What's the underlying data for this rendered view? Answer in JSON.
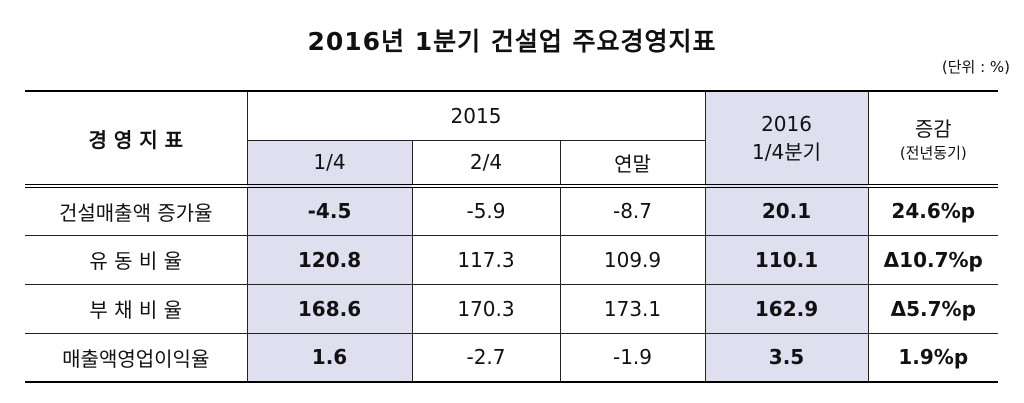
{
  "title": "2016년 1분기 건설업 주요경영지표",
  "unit": "(단위 : %)",
  "table": {
    "header": {
      "indicator": "경 영 지 표",
      "year_2015": "2015",
      "periods_2015": [
        "1/4",
        "2/4",
        "연말"
      ],
      "year_2016": [
        "2016",
        "1/4분기"
      ],
      "change": [
        "증감",
        "(전년동기)"
      ]
    },
    "rows": [
      [
        "건설매출액 증가율",
        "-4.5",
        "-5.9",
        "-8.7",
        "20.1",
        "24.6%p"
      ],
      [
        "유 동 비 율",
        "120.8",
        "117.3",
        "109.9",
        "110.1",
        "Δ10.7%p"
      ],
      [
        "부 채 비 율",
        "168.6",
        "170.3",
        "173.1",
        "162.9",
        "Δ5.7%p"
      ],
      [
        "매출액영업이익율",
        "1.6",
        "-2.7",
        "-1.9",
        "3.5",
        "1.9%p"
      ]
    ]
  }
}
